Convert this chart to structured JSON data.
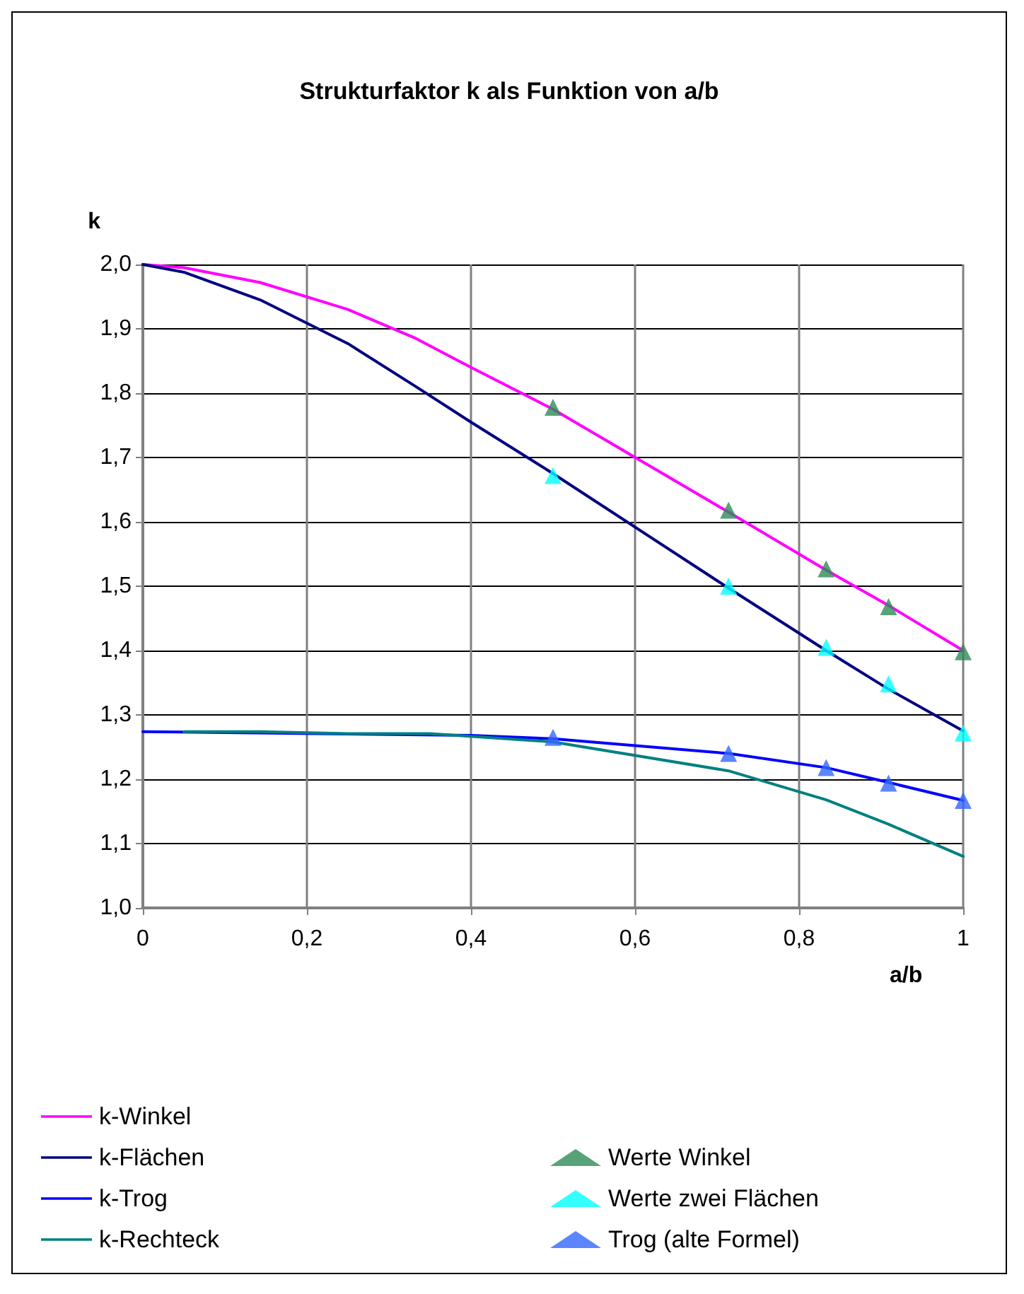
{
  "chart_data": {
    "type": "line",
    "title": "Strukturfaktor k als Funktion von a/b",
    "xlabel": "a/b",
    "ylabel": "k",
    "xlim": [
      0,
      1
    ],
    "xticks": [
      0,
      {
        "value": 0.2,
        "label": "0,2"
      },
      {
        "value": 0.4,
        "label": "0,4"
      },
      {
        "value": 0.6,
        "label": "0,6"
      },
      {
        "value": 0.8,
        "label": "0,8"
      },
      1
    ],
    "ylim": [
      1,
      2
    ],
    "yticks": [
      {
        "value": 1,
        "label": "1,0"
      },
      {
        "value": 1.1,
        "label": "1,1"
      },
      {
        "value": 1.2,
        "label": "1,2"
      },
      {
        "value": 1.3,
        "label": "1,3"
      },
      {
        "value": 1.4,
        "label": "1,4"
      },
      {
        "value": 1.5,
        "label": "1,5"
      },
      {
        "value": 1.6,
        "label": "1,6"
      },
      {
        "value": 1.7,
        "label": "1,7"
      },
      {
        "value": 1.8,
        "label": "1,8"
      },
      {
        "value": 1.9,
        "label": "1,9"
      },
      {
        "value": 2,
        "label": "2,0"
      }
    ],
    "grid": true,
    "legend": "bottom",
    "marker": "none",
    "line_style": "solid",
    "series": [
      {
        "name": "k-Winkel",
        "color": "#ff00ff",
        "x": [
          0,
          0.05,
          0.143,
          0.25,
          0.333,
          0.4,
          0.5,
          0.714,
          0.833,
          0.909,
          1
        ],
        "values": [
          2.0,
          1.995,
          1.972,
          1.93,
          1.885,
          1.84,
          1.775,
          1.615,
          1.525,
          1.47,
          1.4
        ]
      },
      {
        "name": "k-Flächen",
        "color": "#000080",
        "x": [
          0,
          0.05,
          0.143,
          0.25,
          0.333,
          0.4,
          0.5,
          0.714,
          0.833,
          0.909,
          1
        ],
        "values": [
          2.0,
          1.988,
          1.945,
          1.877,
          1.81,
          1.755,
          1.675,
          1.497,
          1.4,
          1.34,
          1.275
        ]
      },
      {
        "name": "k-Trog",
        "color": "#0000ff",
        "x": [
          0,
          0.4,
          0.5,
          0.714,
          0.833,
          0.909,
          1
        ],
        "values": [
          1.274,
          1.268,
          1.263,
          1.24,
          1.218,
          1.195,
          1.167
        ]
      },
      {
        "name": "k-Rechteck",
        "color": "#008080",
        "x": [
          0.05,
          0.143,
          0.25,
          0.35,
          0.5,
          0.714,
          0.833,
          0.909,
          1
        ],
        "values": [
          1.274,
          1.274,
          1.271,
          1.271,
          1.258,
          1.213,
          1.168,
          1.13,
          1.08
        ]
      },
      {
        "name": "Werte Winkel",
        "type": "scatter",
        "marker": "triangle",
        "color": "#2e8b57",
        "x": [
          0.5,
          0.714,
          0.833,
          0.909,
          1
        ],
        "values": [
          1.778,
          1.618,
          1.527,
          1.468,
          1.398
        ]
      },
      {
        "name": "Werte zwei Flächen",
        "type": "scatter",
        "marker": "triangle",
        "color": "#00ffff",
        "x": [
          0.5,
          0.714,
          0.833,
          0.909,
          1
        ],
        "values": [
          1.672,
          1.5,
          1.405,
          1.348,
          1.272
        ]
      },
      {
        "name": "Trog (alte Formel)",
        "type": "scatter",
        "marker": "triangle",
        "color": "#3366ff",
        "x": [
          0.5,
          0.714,
          0.833,
          0.909,
          1
        ],
        "values": [
          1.265,
          1.24,
          1.218,
          1.194,
          1.167
        ]
      }
    ]
  }
}
